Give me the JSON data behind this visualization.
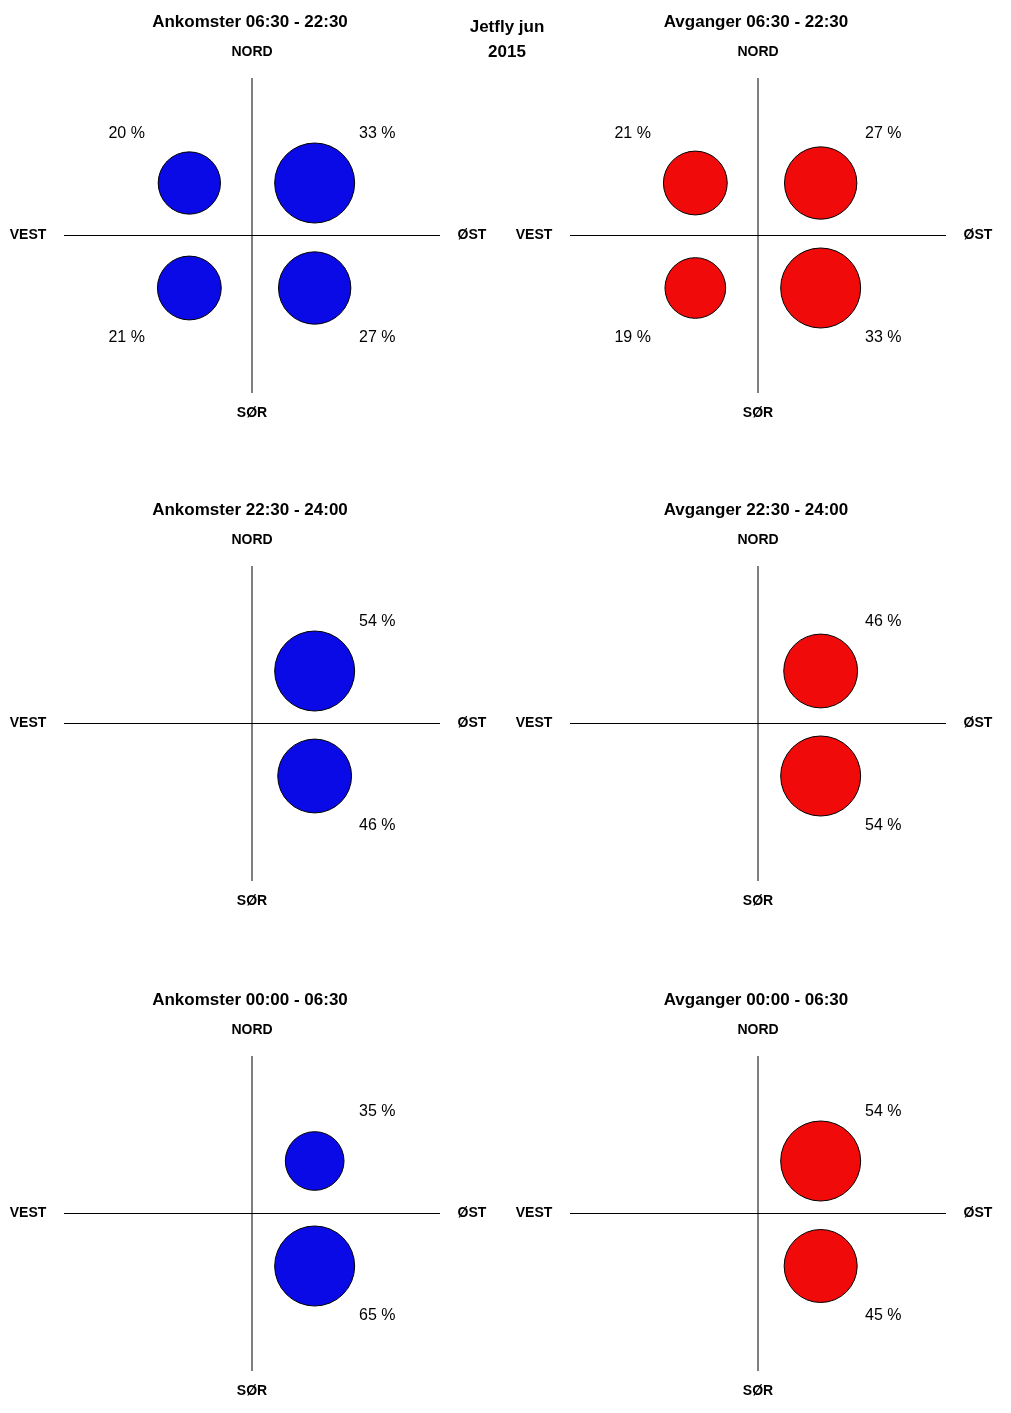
{
  "chart_data": [
    {
      "type": "other",
      "title": "Jetfly jun 2015"
    },
    {
      "type": "other",
      "title": "Ankomster 06:30 - 22:30",
      "color": "#0a0ae6",
      "categories": [
        null,
        null,
        null,
        null
      ],
      "values": [
        20,
        33,
        21,
        27
      ],
      "value_labels": [
        "20 %",
        "33 %",
        "21 %",
        "27 %"
      ],
      "annotations": [
        "NORD",
        "VEST",
        "ØST",
        "SØR"
      ]
    },
    {
      "type": "other",
      "title": "Avganger 06:30 - 22:30",
      "color": "#f00a0a",
      "categories": [
        null,
        null,
        null,
        null
      ],
      "values": [
        21,
        27,
        19,
        33
      ],
      "value_labels": [
        "21 %",
        "27 %",
        "19 %",
        "33 %"
      ],
      "annotations": [
        "NORD",
        "VEST",
        "ØST",
        "SØR"
      ]
    },
    {
      "type": "other",
      "title": "Ankomster 22:30 - 24:00",
      "color": "#0a0ae6",
      "categories": [
        null,
        null
      ],
      "values": [
        54,
        46
      ],
      "value_labels": [
        "54 %",
        "46 %"
      ],
      "annotations": [
        "NORD",
        "VEST",
        "ØST",
        "SØR"
      ]
    },
    {
      "type": "other",
      "title": "Avganger 22:30 - 24:00",
      "color": "#f00a0a",
      "categories": [
        null,
        null
      ],
      "values": [
        46,
        54
      ],
      "value_labels": [
        "46 %",
        "54 %"
      ],
      "annotations": [
        "NORD",
        "VEST",
        "ØST",
        "SØR"
      ]
    },
    {
      "type": "other",
      "title": "Ankomster 00:00 - 06:30",
      "color": "#0a0ae6",
      "categories": [
        null,
        null
      ],
      "values": [
        35,
        65
      ],
      "value_labels": [
        "35 %",
        "65 %"
      ],
      "annotations": [
        "NORD",
        "VEST",
        "ØST",
        "SØR"
      ]
    },
    {
      "type": "other",
      "title": "Avganger 00:00 - 06:30",
      "color": "#f00a0a",
      "categories": [
        null,
        null
      ],
      "values": [
        54,
        45
      ],
      "value_labels": [
        "54 %",
        "45 %"
      ],
      "annotations": [
        "NORD",
        "VEST",
        "ØST",
        "SØR"
      ]
    }
  ]
}
